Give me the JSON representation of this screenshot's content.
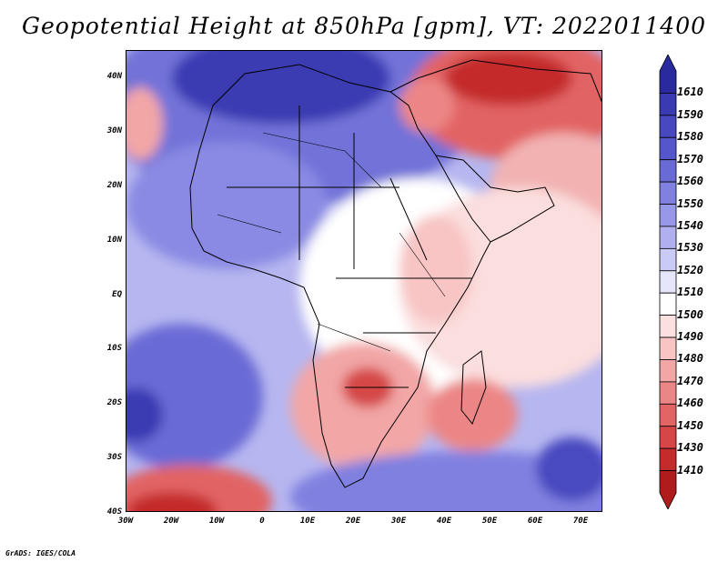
{
  "title": "Geopotential Height at 850hPa [gpm], VT: 2022011400",
  "credit": "GrADS: IGES/COLA",
  "lat_labels": [
    "40N",
    "30N",
    "20N",
    "10N",
    "EQ",
    "10S",
    "20S",
    "30S",
    "40S"
  ],
  "lon_labels": [
    "30W",
    "20W",
    "10W",
    "0",
    "10E",
    "20E",
    "30E",
    "40E",
    "50E",
    "60E",
    "70E"
  ],
  "colorbar": {
    "levels": [
      "1610",
      "1590",
      "1580",
      "1570",
      "1560",
      "1550",
      "1540",
      "1530",
      "1520",
      "1510",
      "1500",
      "1490",
      "1480",
      "1470",
      "1460",
      "1450",
      "1430",
      "1410"
    ],
    "colors": [
      "#2a2a9e",
      "#3a3ab2",
      "#4848c0",
      "#5656cc",
      "#6a6ad6",
      "#8080e0",
      "#9898ea",
      "#b0b0f0",
      "#cacaf6",
      "#e4e4fb",
      "#ffffff",
      "#fbe0e0",
      "#f8c4c4",
      "#f2a6a6",
      "#ec8686",
      "#e26464",
      "#d64646",
      "#c42c2c",
      "#b01c1c"
    ]
  },
  "map": {
    "region": "Africa and surrounding oceans",
    "lat_range": [
      -40,
      45
    ],
    "lon_range": [
      -30,
      75
    ]
  }
}
